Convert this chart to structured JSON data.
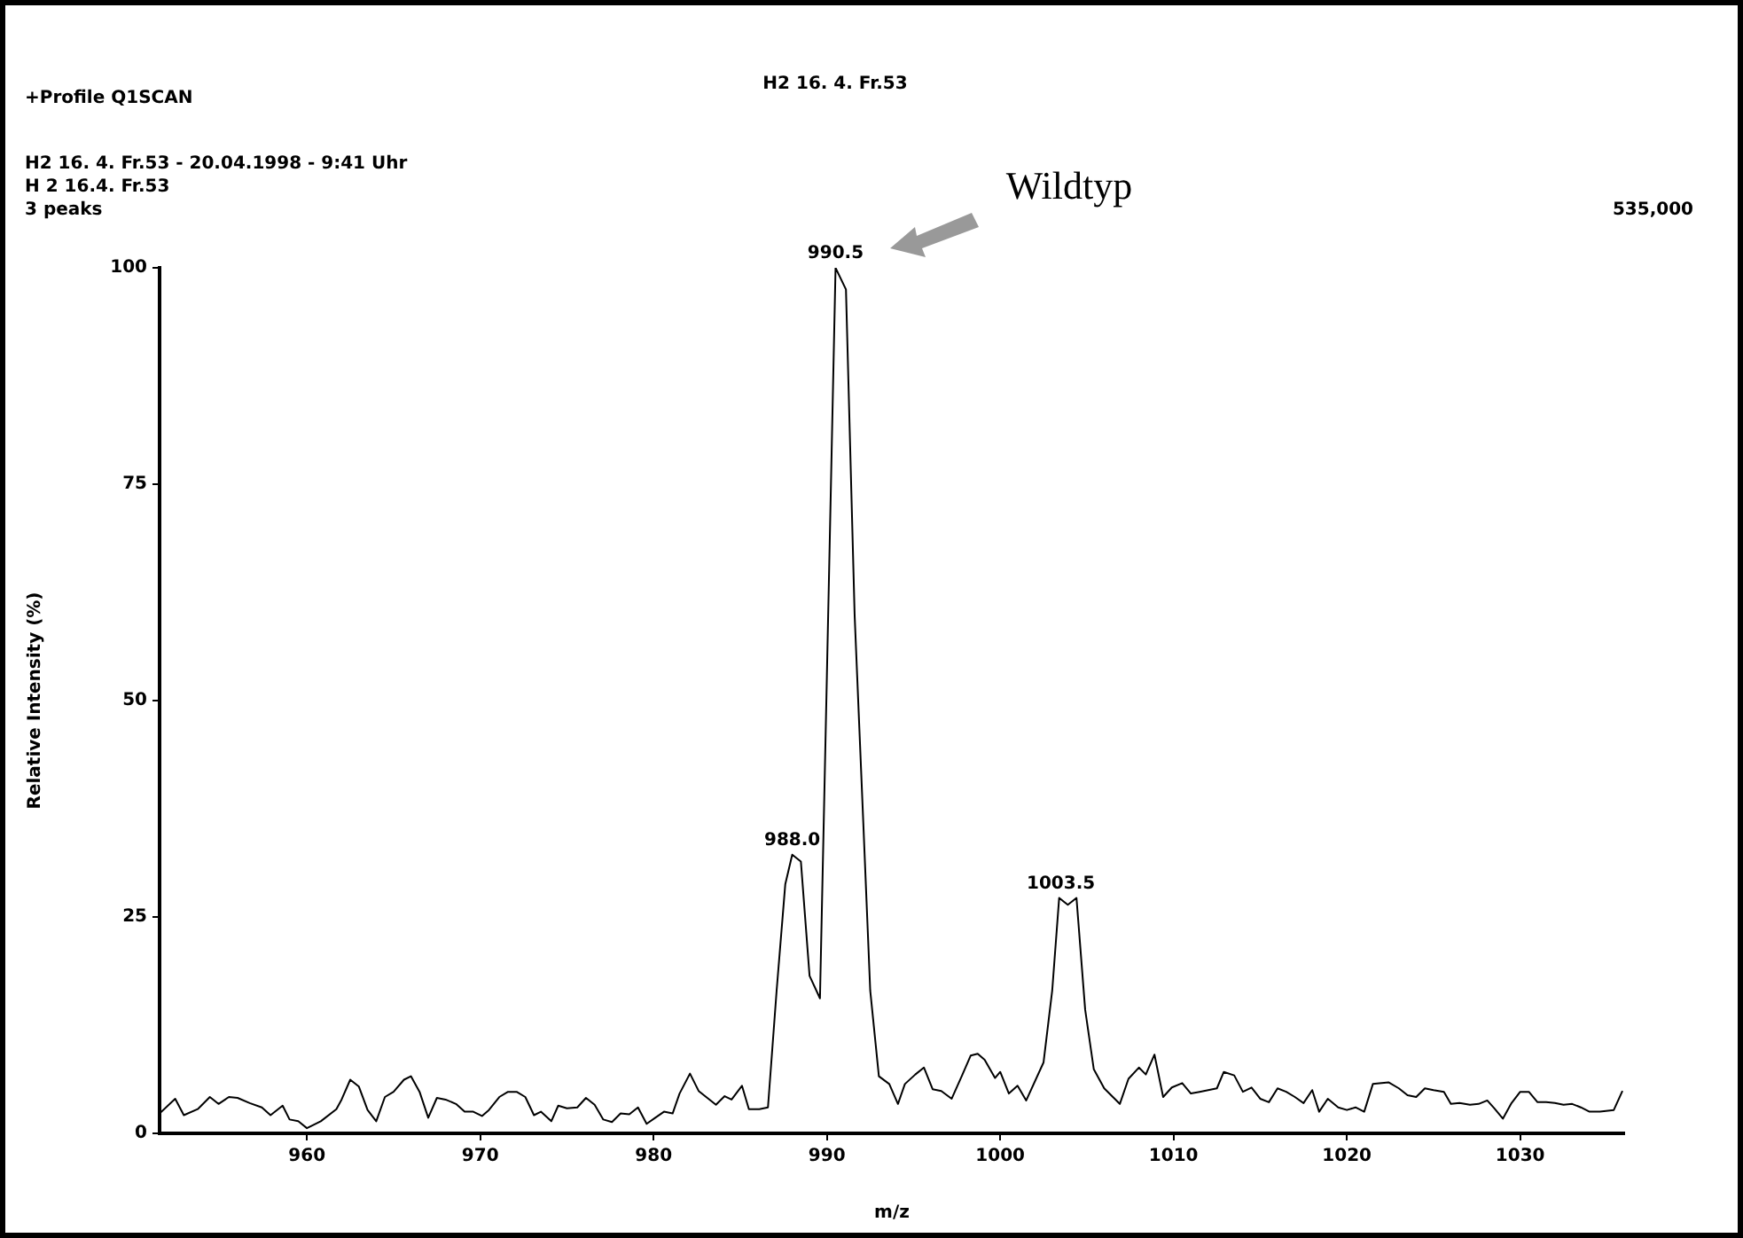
{
  "chart_data": {
    "type": "line",
    "title": "H2 16. 4. Fr.53",
    "xlabel": "m/z",
    "ylabel": "Relative Intensity (%)",
    "annotations": [
      "+Profile Q1SCAN",
      "H2 16. 4. Fr.53 - 20.04.1998 - 9:41 Uhr",
      "H 2 16.4. Fr.53",
      "3 peaks",
      "535,000",
      "Wildtyp",
      {
        "text": "988.0",
        "x": 988.0,
        "y": 32.2
      },
      {
        "text": "990.5",
        "x": 990.5,
        "y": 100
      },
      {
        "text": "1003.5",
        "x": 1003.5,
        "y": 27.2
      }
    ],
    "series": [
      {
        "color": "#000000",
        "x": [
          951.5,
          952.4,
          952.9,
          953.7,
          954.4,
          954.9,
          955.5,
          956,
          956.7,
          957.4,
          957.9,
          958.6,
          959,
          959.5,
          960,
          960.8,
          961.7,
          962,
          962.5,
          963,
          963.5,
          964,
          964.5,
          965,
          965.6,
          966,
          966.5,
          967,
          967.5,
          968,
          968.6,
          969.1,
          969.6,
          970.1,
          970.5,
          971.1,
          971.6,
          972.1,
          972.6,
          973.1,
          973.5,
          974.1,
          974.5,
          975,
          975.6,
          976.1,
          976.6,
          977.1,
          977.6,
          978.1,
          978.6,
          979.1,
          979.6,
          980.1,
          980.6,
          981.1,
          981.5,
          982.1,
          982.6,
          983.1,
          983.6,
          984.1,
          984.5,
          985.1,
          985.5,
          986.1,
          986.6,
          987.1,
          987.6,
          988,
          988.5,
          989,
          989.6,
          990,
          990.5,
          991.1,
          991.6,
          992.1,
          992.5,
          993,
          993.6,
          994.1,
          994.5,
          995.1,
          995.6,
          996.1,
          996.6,
          997.2,
          997.8,
          998.3,
          998.7,
          999.1,
          999.7,
          1000,
          1000.5,
          1001,
          1001.5,
          1002.5,
          1003,
          1003.4,
          1003.9,
          1004.4,
          1004.9,
          1005.4,
          1006,
          1006.9,
          1007.4,
          1008,
          1008.4,
          1008.9,
          1009.4,
          1009.9,
          1010.5,
          1011,
          1011.5,
          1012.5,
          1012.9,
          1013.5,
          1014,
          1014.5,
          1015,
          1015.5,
          1016,
          1016.5,
          1017,
          1017.5,
          1018,
          1018.4,
          1018.9,
          1019.5,
          1020,
          1020.5,
          1021,
          1021.5,
          1022.4,
          1023,
          1023.5,
          1024,
          1024.5,
          1025,
          1025.6,
          1026,
          1026.5,
          1027.1,
          1027.6,
          1028.1,
          1028.5,
          1029,
          1029.5,
          1030,
          1030.5,
          1031,
          1031.5,
          1032,
          1032.5,
          1033,
          1033.5,
          1034,
          1034.6,
          1035.4,
          1035.9
        ],
        "values": [
          2.3,
          4.0,
          2.1,
          2.8,
          4.2,
          3.4,
          4.2,
          4.1,
          3.5,
          3.0,
          2.1,
          3.2,
          1.6,
          1.4,
          0.6,
          1.4,
          2.8,
          3.9,
          6.2,
          5.4,
          2.7,
          1.4,
          4.2,
          4.8,
          6.2,
          6.6,
          4.8,
          1.8,
          4.1,
          3.9,
          3.4,
          2.5,
          2.5,
          2.0,
          2.7,
          4.2,
          4.8,
          4.8,
          4.2,
          2.1,
          2.5,
          1.4,
          3.2,
          2.9,
          3.0,
          4.1,
          3.3,
          1.6,
          1.3,
          2.3,
          2.2,
          3.0,
          1.1,
          1.8,
          2.5,
          2.3,
          4.6,
          6.9,
          4.9,
          4.1,
          3.3,
          4.3,
          3.9,
          5.5,
          2.8,
          2.8,
          3.0,
          16.5,
          28.8,
          32.2,
          31.4,
          18.2,
          15.6,
          52.9,
          100,
          97.5,
          59.9,
          35.9,
          16.5,
          6.6,
          5.7,
          3.4,
          5.7,
          6.8,
          7.6,
          5.1,
          4.9,
          4.0,
          6.7,
          9.0,
          9.2,
          8.5,
          6.4,
          7.1,
          4.6,
          5.5,
          3.8,
          8.2,
          16.5,
          27.2,
          26.4,
          27.2,
          14.3,
          7.4,
          5.2,
          3.4,
          6.3,
          7.6,
          6.8,
          9.1,
          4.2,
          5.3,
          5.8,
          4.6,
          4.8,
          5.2,
          7.1,
          6.7,
          4.8,
          5.3,
          4.0,
          3.6,
          5.2,
          4.8,
          4.2,
          3.5,
          5.0,
          2.5,
          4.0,
          3.0,
          2.7,
          3.0,
          2.5,
          5.7,
          5.9,
          5.2,
          4.4,
          4.2,
          5.2,
          5.0,
          4.8,
          3.4,
          3.5,
          3.3,
          3.4,
          3.8,
          2.9,
          1.7,
          3.5,
          4.8,
          4.8,
          3.6,
          3.6,
          3.5,
          3.3,
          3.4,
          3.0,
          2.5,
          2.5,
          2.7,
          4.9
        ]
      }
    ],
    "xlim": [
      951.5,
      1036
    ],
    "xticks": [
      960,
      970,
      980,
      990,
      1000,
      1010,
      1020,
      1030
    ],
    "ylim": [
      0,
      100
    ],
    "yticks": [
      0,
      25,
      50,
      75,
      100
    ],
    "grid": false,
    "legend": false,
    "marker": "none",
    "line_style": "solid"
  }
}
